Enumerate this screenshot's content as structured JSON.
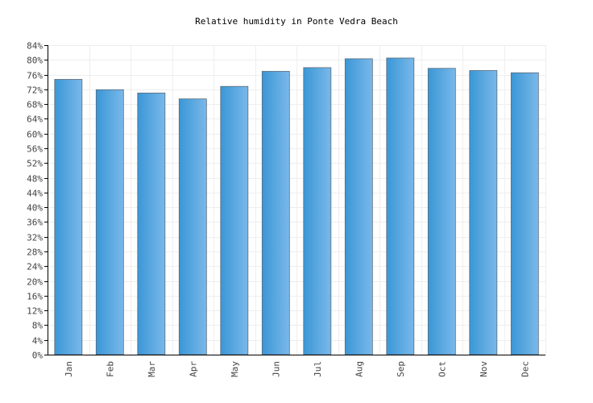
{
  "chart_data": {
    "type": "bar",
    "title": "Relative humidity in Ponte Vedra Beach",
    "xlabel": "",
    "ylabel": "",
    "categories": [
      "Jan",
      "Feb",
      "Mar",
      "Apr",
      "May",
      "Jun",
      "Jul",
      "Aug",
      "Sep",
      "Oct",
      "Nov",
      "Dec"
    ],
    "values": [
      74.7,
      71.9,
      71.0,
      69.4,
      72.8,
      76.9,
      77.9,
      80.3,
      80.5,
      77.7,
      77.1,
      76.5
    ],
    "ylim": [
      0,
      84
    ],
    "ytick_step": 4,
    "ytick_suffix": "%",
    "grid": true,
    "colors": {
      "bar_dark": "#3a97d6",
      "bar_light": "#7ab8ea",
      "bar_edge": "#5a6a78",
      "grid": "#eeeeee",
      "axis": "#000000"
    }
  }
}
